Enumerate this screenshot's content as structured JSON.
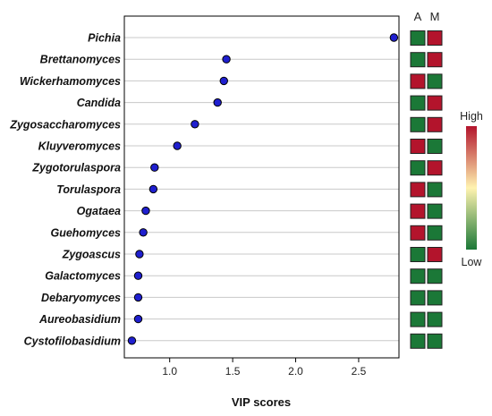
{
  "chart_data": {
    "type": "scatter",
    "xlabel": "VIP scores",
    "xticks": [
      1.0,
      1.5,
      2.0,
      2.5
    ],
    "xlim": [
      0.64,
      2.82
    ],
    "grid": true,
    "columns": [
      "A",
      "M"
    ],
    "legend": {
      "high_label": "High",
      "low_label": "Low",
      "high_color": "#b3142c",
      "mid_color": "#fff3b0",
      "low_color": "#1b7837"
    },
    "point_color": "#1f1fcf",
    "items": [
      {
        "label": "Pichia",
        "vip": 2.78,
        "A": "low",
        "M": "high"
      },
      {
        "label": "Brettanomyces",
        "vip": 1.45,
        "A": "low",
        "M": "high"
      },
      {
        "label": "Wickerhamomyces",
        "vip": 1.43,
        "A": "high",
        "M": "low"
      },
      {
        "label": "Candida",
        "vip": 1.38,
        "A": "low",
        "M": "high"
      },
      {
        "label": "Zygosaccharomyces",
        "vip": 1.2,
        "A": "low",
        "M": "high"
      },
      {
        "label": "Kluyveromyces",
        "vip": 1.06,
        "A": "high",
        "M": "low"
      },
      {
        "label": "Zygotorulaspora",
        "vip": 0.88,
        "A": "low",
        "M": "high"
      },
      {
        "label": "Torulaspora",
        "vip": 0.87,
        "A": "high",
        "M": "low"
      },
      {
        "label": "Ogataea",
        "vip": 0.81,
        "A": "high",
        "M": "low"
      },
      {
        "label": "Guehomyces",
        "vip": 0.79,
        "A": "high",
        "M": "low"
      },
      {
        "label": "Zygoascus",
        "vip": 0.76,
        "A": "low",
        "M": "high"
      },
      {
        "label": "Galactomyces",
        "vip": 0.75,
        "A": "low",
        "M": "low"
      },
      {
        "label": "Debaryomyces",
        "vip": 0.75,
        "A": "low",
        "M": "low"
      },
      {
        "label": "Aureobasidium",
        "vip": 0.75,
        "A": "low",
        "M": "low"
      },
      {
        "label": "Cystofilobasidium",
        "vip": 0.7,
        "A": "low",
        "M": "low"
      }
    ]
  }
}
